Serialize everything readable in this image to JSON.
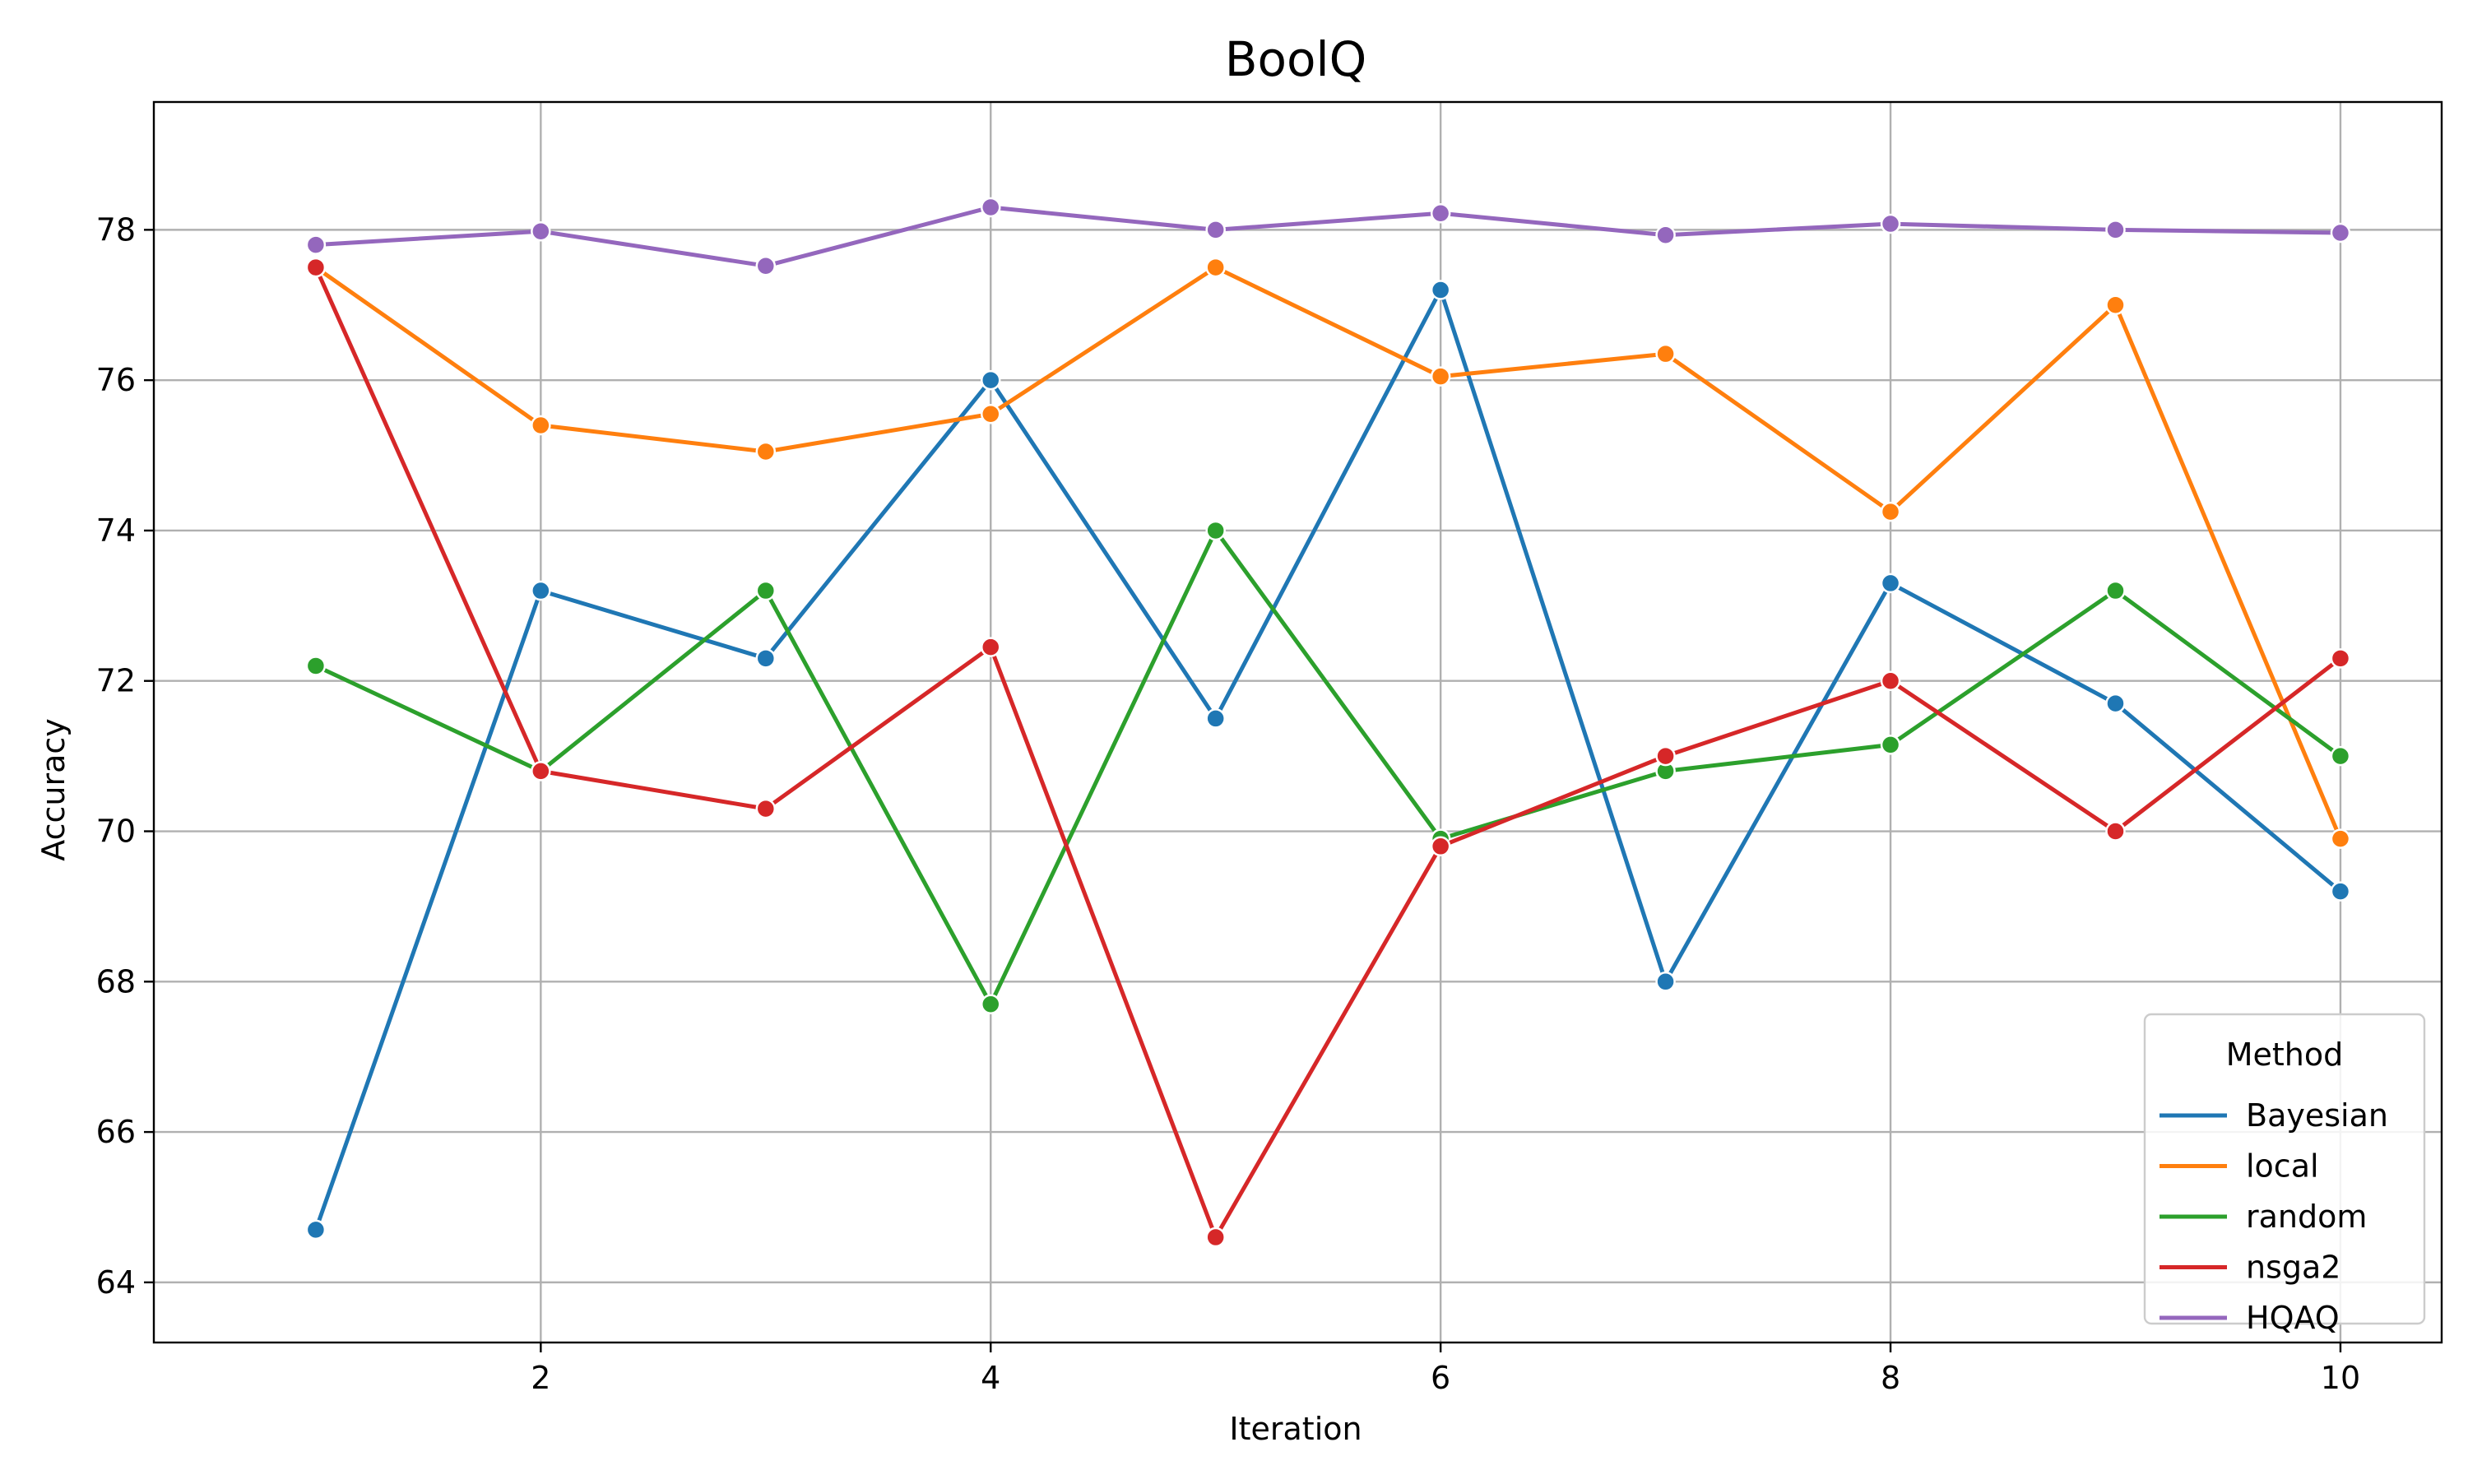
{
  "chart_data": {
    "type": "line",
    "title": "BoolQ",
    "xlabel": "Iteration",
    "ylabel": "Accuracy",
    "xlim": [
      0.28,
      10.45
    ],
    "ylim": [
      63.2,
      79.7
    ],
    "xticks": [
      2,
      4,
      6,
      8,
      10
    ],
    "yticks": [
      64,
      66,
      68,
      70,
      72,
      74,
      76,
      78
    ],
    "x": [
      1,
      2,
      3,
      4,
      5,
      6,
      7,
      8,
      9,
      10
    ],
    "grid": true,
    "legend_title": "Method",
    "legend_position": "lower-right",
    "series": [
      {
        "name": "Bayesian",
        "color": "#1f77b4",
        "values": [
          64.7,
          73.2,
          72.3,
          76.0,
          71.5,
          77.2,
          68.0,
          73.3,
          71.7,
          69.2
        ]
      },
      {
        "name": "local",
        "color": "#ff7f0e",
        "values": [
          77.5,
          75.4,
          75.05,
          75.55,
          77.5,
          76.05,
          76.35,
          74.25,
          77.0,
          69.9
        ]
      },
      {
        "name": "random",
        "color": "#2ca02c",
        "values": [
          72.2,
          70.8,
          73.2,
          67.7,
          74.0,
          69.9,
          70.8,
          71.15,
          73.2,
          71.0
        ]
      },
      {
        "name": "nsga2",
        "color": "#d62728",
        "values": [
          77.5,
          70.8,
          70.3,
          72.45,
          64.6,
          69.8,
          71.0,
          72.0,
          70.0,
          72.3
        ]
      },
      {
        "name": "HQAQ",
        "color": "#9467bd",
        "values": [
          77.8,
          77.98,
          77.52,
          78.3,
          78.0,
          78.22,
          77.93,
          78.08,
          78.0,
          77.96
        ]
      }
    ]
  }
}
